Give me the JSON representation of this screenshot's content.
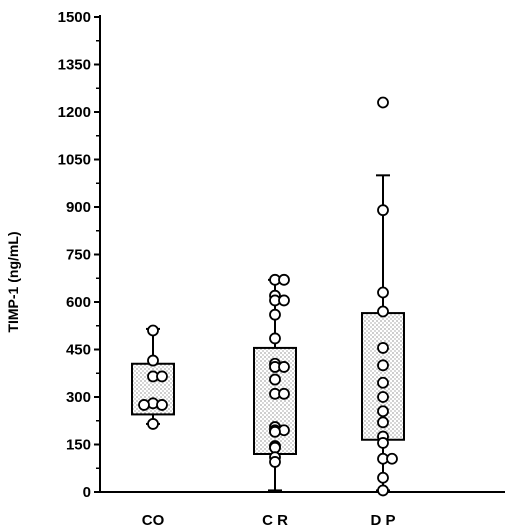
{
  "chart_data": {
    "type": "box",
    "title": "",
    "xlabel": "",
    "ylabel": "TIMP-1 (ng/mL)",
    "ylim": [
      0,
      1550
    ],
    "yticks": [
      0,
      150,
      300,
      450,
      600,
      750,
      900,
      1050,
      1200,
      1350,
      1500
    ],
    "ytick_labels": [
      "0",
      "150",
      "300",
      "450",
      "600",
      "750",
      "900",
      "1050",
      "1200",
      "1350",
      "1500"
    ],
    "categories": [
      "CO",
      "C R",
      "D P"
    ],
    "grid": false,
    "boxes": [
      {
        "category": "CO",
        "whisker_low": 215,
        "q1": 245,
        "q3": 405,
        "whisker_high": 515,
        "points": [
          510,
          415,
          365,
          365,
          280,
          275,
          275,
          215
        ]
      },
      {
        "category": "C R",
        "whisker_low": 5,
        "q1": 120,
        "q3": 455,
        "whisker_high": 670,
        "points": [
          670,
          670,
          620,
          605,
          605,
          560,
          485,
          405,
          395,
          395,
          355,
          310,
          310,
          205,
          195,
          195,
          190,
          145,
          140,
          110,
          95
        ]
      },
      {
        "category": "D P",
        "whisker_low": 5,
        "q1": 165,
        "q3": 565,
        "whisker_high": 1000,
        "points": [
          1230,
          890,
          630,
          570,
          455,
          400,
          345,
          300,
          255,
          220,
          175,
          155,
          105,
          105,
          45,
          5
        ]
      }
    ]
  }
}
